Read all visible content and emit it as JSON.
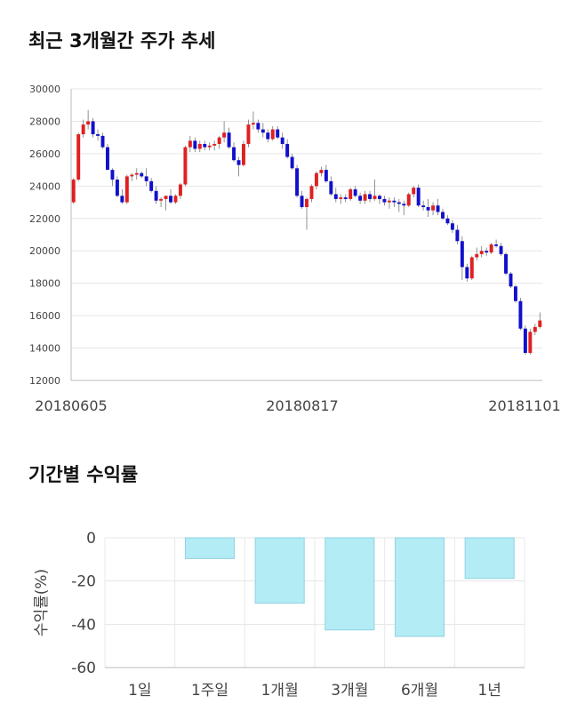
{
  "section1": {
    "title": "최근 3개월간 주가 추세"
  },
  "section2": {
    "title": "기간별 수익률"
  },
  "chart_data": [
    {
      "type": "candlestick",
      "title": "최근 3개월간 주가 추세",
      "ylim": [
        12000,
        30000
      ],
      "y_ticks": [
        12000,
        14000,
        16000,
        18000,
        20000,
        22000,
        24000,
        26000,
        28000,
        30000
      ],
      "x_tick_labels": [
        "20180605",
        "20180817",
        "20181101"
      ],
      "grid": true,
      "colors": {
        "up": "#e02020",
        "down": "#1010cc",
        "neutral": "#666666"
      },
      "ohlc": [
        [
          23000,
          24500,
          22900,
          24400
        ],
        [
          24400,
          27300,
          24300,
          27200
        ],
        [
          27200,
          28100,
          27000,
          27800
        ],
        [
          27800,
          28700,
          27500,
          28000
        ],
        [
          28000,
          28200,
          27000,
          27200
        ],
        [
          27200,
          27500,
          26800,
          27100
        ],
        [
          27100,
          27300,
          26300,
          26400
        ],
        [
          26400,
          26600,
          25000,
          25000
        ],
        [
          25000,
          25100,
          24000,
          24400
        ],
        [
          24400,
          24600,
          23300,
          23400
        ],
        [
          23400,
          23800,
          22900,
          23000
        ],
        [
          23000,
          24700,
          22900,
          24600
        ],
        [
          24600,
          24800,
          24300,
          24700
        ],
        [
          24700,
          25100,
          24400,
          24800
        ],
        [
          24800,
          24900,
          24500,
          24600
        ],
        [
          24600,
          25100,
          24000,
          24300
        ],
        [
          24300,
          24500,
          23600,
          23700
        ],
        [
          23700,
          24000,
          22900,
          23100
        ],
        [
          23100,
          23300,
          22700,
          23200
        ],
        [
          23200,
          23400,
          22500,
          23400
        ],
        [
          23400,
          23800,
          22900,
          23000
        ],
        [
          23000,
          23500,
          22900,
          23400
        ],
        [
          23400,
          24200,
          23200,
          24100
        ],
        [
          24100,
          26500,
          24000,
          26400
        ],
        [
          26400,
          27100,
          26100,
          26800
        ],
        [
          26800,
          27000,
          26100,
          26300
        ],
        [
          26300,
          26800,
          26100,
          26600
        ],
        [
          26600,
          26800,
          26200,
          26400
        ],
        [
          26400,
          26700,
          26200,
          26500
        ],
        [
          26500,
          26800,
          26200,
          26600
        ],
        [
          26600,
          27100,
          26300,
          27000
        ],
        [
          27000,
          28000,
          26700,
          27300
        ],
        [
          27300,
          27600,
          26300,
          26400
        ],
        [
          26400,
          26700,
          25500,
          25600
        ],
        [
          25600,
          25800,
          24600,
          25300
        ],
        [
          25300,
          26800,
          25200,
          26600
        ],
        [
          26600,
          28100,
          26400,
          27800
        ],
        [
          27800,
          28600,
          27500,
          27900
        ],
        [
          27900,
          28100,
          27300,
          27500
        ],
        [
          27500,
          27900,
          27000,
          27300
        ],
        [
          27300,
          27500,
          26700,
          26900
        ],
        [
          26900,
          27700,
          26800,
          27500
        ],
        [
          27500,
          27700,
          26900,
          27000
        ],
        [
          27000,
          27300,
          26300,
          26600
        ],
        [
          26600,
          26900,
          25700,
          25800
        ],
        [
          25800,
          26000,
          25000,
          25100
        ],
        [
          25100,
          25300,
          23300,
          23400
        ],
        [
          23400,
          23700,
          22600,
          22700
        ],
        [
          22700,
          23300,
          21300,
          23200
        ],
        [
          23200,
          24100,
          23000,
          24000
        ],
        [
          24000,
          24900,
          23800,
          24800
        ],
        [
          24800,
          25200,
          24600,
          25000
        ],
        [
          25000,
          25300,
          24200,
          24300
        ],
        [
          24300,
          24600,
          23400,
          23500
        ],
        [
          23500,
          23900,
          23000,
          23200
        ],
        [
          23200,
          23500,
          22900,
          23300
        ],
        [
          23300,
          23500,
          23000,
          23200
        ],
        [
          23200,
          23900,
          23100,
          23800
        ],
        [
          23800,
          24000,
          23300,
          23400
        ],
        [
          23400,
          23600,
          22900,
          23100
        ],
        [
          23100,
          23700,
          22900,
          23500
        ],
        [
          23500,
          23700,
          23000,
          23200
        ],
        [
          23200,
          24400,
          23100,
          23400
        ],
        [
          23400,
          23500,
          22900,
          23200
        ],
        [
          23200,
          23400,
          22800,
          23000
        ],
        [
          23000,
          23300,
          22600,
          23100
        ],
        [
          23100,
          23300,
          22700,
          23000
        ],
        [
          23000,
          23200,
          22400,
          22900
        ],
        [
          22900,
          23100,
          22200,
          22800
        ],
        [
          22800,
          23600,
          22700,
          23500
        ],
        [
          23500,
          24000,
          23300,
          23900
        ],
        [
          23900,
          24100,
          22700,
          22800
        ],
        [
          22800,
          23100,
          22500,
          22700
        ],
        [
          22700,
          23200,
          22100,
          22500
        ],
        [
          22500,
          23000,
          22200,
          22800
        ],
        [
          22800,
          23200,
          22200,
          22400
        ],
        [
          22400,
          22600,
          21900,
          22000
        ],
        [
          22000,
          22200,
          21600,
          21700
        ],
        [
          21700,
          21900,
          21100,
          21300
        ],
        [
          21300,
          21600,
          20400,
          20600
        ],
        [
          20600,
          20900,
          18200,
          19000
        ],
        [
          19000,
          19200,
          18100,
          18300
        ],
        [
          18300,
          19700,
          18200,
          19600
        ],
        [
          19600,
          20200,
          19400,
          19800
        ],
        [
          19800,
          20300,
          19600,
          20000
        ],
        [
          20000,
          20200,
          19700,
          19900
        ],
        [
          19900,
          20500,
          19800,
          20400
        ],
        [
          20400,
          20700,
          20200,
          20300
        ],
        [
          20300,
          20500,
          19700,
          19800
        ],
        [
          19800,
          19900,
          18500,
          18600
        ],
        [
          18600,
          18700,
          17700,
          17800
        ],
        [
          17800,
          17900,
          16800,
          16900
        ],
        [
          16900,
          17100,
          15100,
          15200
        ],
        [
          15200,
          15400,
          13600,
          13700
        ],
        [
          13700,
          15200,
          13600,
          15000
        ],
        [
          15000,
          15500,
          14800,
          15300
        ],
        [
          15300,
          16200,
          15200,
          15700
        ]
      ]
    },
    {
      "type": "bar",
      "title": "기간별 수익률",
      "ylabel": "수익률(%)",
      "ylim": [
        -60,
        0
      ],
      "y_ticks": [
        0,
        -20,
        -40,
        -60
      ],
      "categories": [
        "1일",
        "1주일",
        "1개월",
        "3개월",
        "6개월",
        "1년"
      ],
      "values": [
        0,
        -9.6,
        -30.2,
        -42.6,
        -45.6,
        -18.8
      ],
      "colors": {
        "fill": "#b3ecf5",
        "stroke": "#8fd2e0"
      }
    }
  ]
}
